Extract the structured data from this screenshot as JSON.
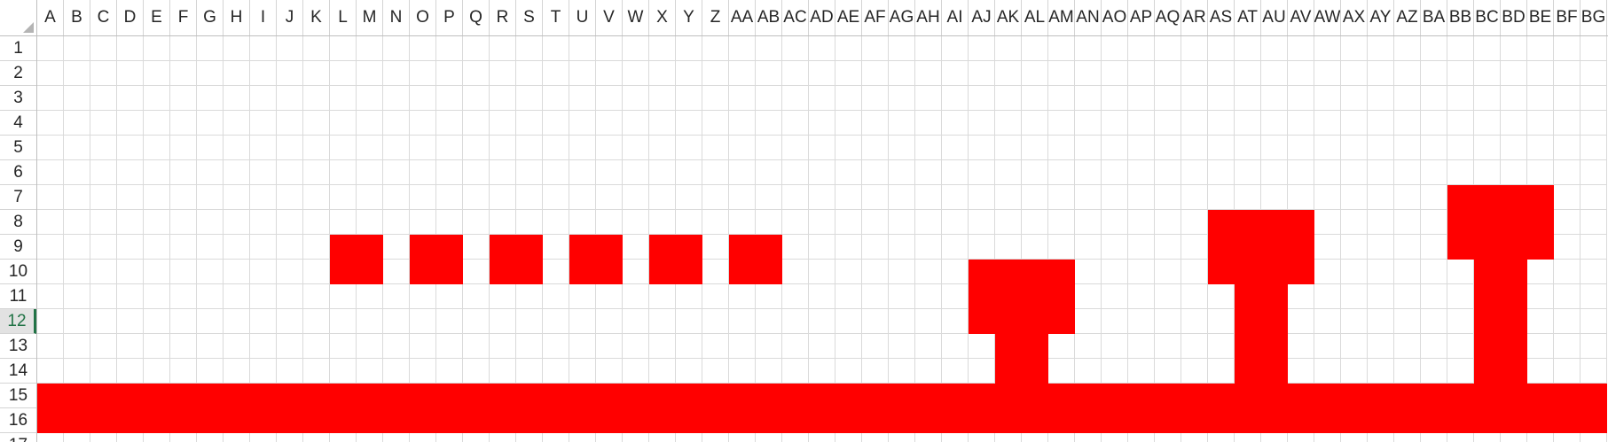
{
  "app": "Spreadsheet",
  "fill_color": "#ff0000",
  "grid_line_color": "#dadada",
  "header_text_color": "#262626",
  "active_row_color": "#217346",
  "active_row": 12,
  "columns": [
    "A",
    "B",
    "C",
    "D",
    "E",
    "F",
    "G",
    "H",
    "I",
    "J",
    "K",
    "L",
    "M",
    "N",
    "O",
    "P",
    "Q",
    "R",
    "S",
    "T",
    "U",
    "V",
    "W",
    "X",
    "Y",
    "Z",
    "AA",
    "AB",
    "AC",
    "AD",
    "AE",
    "AF",
    "AG",
    "AH",
    "AI",
    "AJ",
    "AK",
    "AL",
    "AM",
    "AN",
    "AO",
    "AP",
    "AQ",
    "AR",
    "AS",
    "AT",
    "AU",
    "AV",
    "AW",
    "AX",
    "AY",
    "AZ",
    "BA",
    "BB",
    "BC",
    "BD",
    "BE",
    "BF",
    "BG"
  ],
  "rows": [
    1,
    2,
    3,
    4,
    5,
    6,
    7,
    8,
    9,
    10,
    11,
    12,
    13,
    14,
    15,
    16,
    17
  ],
  "filled_ranges": [
    "L9:M10",
    "O9:P10",
    "R9:S10",
    "U9:V10",
    "X9:Y10",
    "AA9:AB10",
    "AJ10:AM12",
    "AK13:AL14",
    "AS8:AV10",
    "AT11:AU14",
    "BB7:BE9",
    "BC10:BD14",
    "A15:BG16"
  ]
}
